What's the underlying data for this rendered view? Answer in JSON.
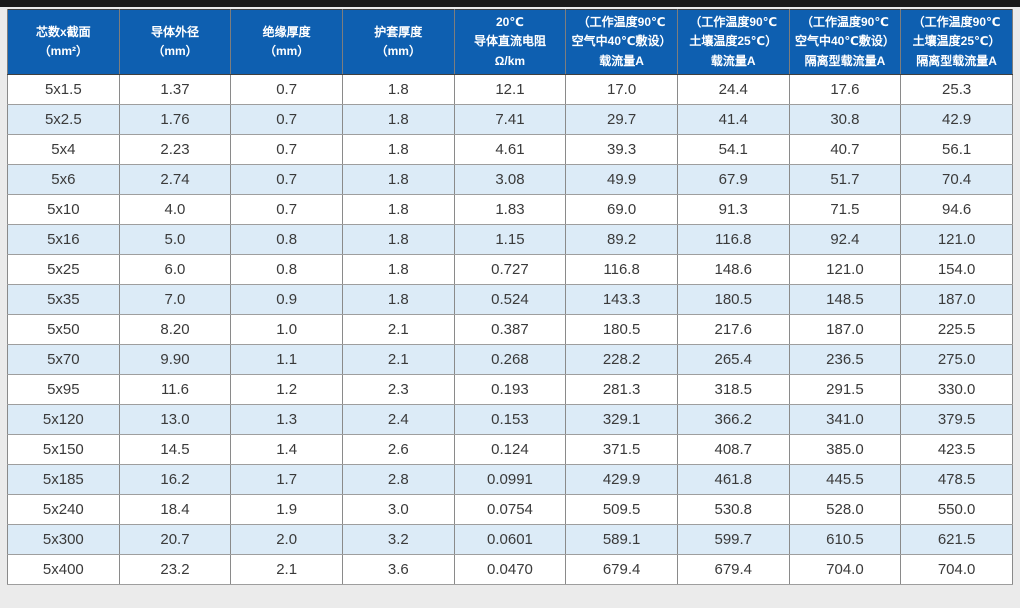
{
  "colors": {
    "header_bg": "#0e5fb0",
    "header_text": "#ffffff",
    "row_bg": "#ffffff",
    "row_alt_bg": "#dcebf7",
    "cell_text": "#3a3a3a",
    "grid_v": "#8a8a8a",
    "grid_h": "#9e9e9e",
    "outer_border": "#3f3f3f",
    "page_bg": "#ebebeb",
    "top_bar": "#1a1a1a"
  },
  "table": {
    "headers": [
      {
        "lines": [
          "芯数x截面",
          "（mm²）"
        ]
      },
      {
        "lines": [
          "导体外径",
          "（mm）"
        ]
      },
      {
        "lines": [
          "绝缘厚度",
          "（mm）"
        ]
      },
      {
        "lines": [
          "护套厚度",
          "（mm）"
        ]
      },
      {
        "lines": [
          "20℃",
          "导体直流电阻",
          "Ω/km"
        ]
      },
      {
        "lines": [
          "（工作温度90℃",
          "空气中40℃敷设）",
          "载流量A"
        ]
      },
      {
        "lines": [
          "（工作温度90℃",
          "土壤温度25℃）",
          "载流量A"
        ]
      },
      {
        "lines": [
          "（工作温度90℃",
          "空气中40℃敷设）",
          "隔离型载流量A"
        ]
      },
      {
        "lines": [
          "（工作温度90℃",
          "土壤温度25℃）",
          "隔离型载流量A"
        ]
      }
    ],
    "rows": [
      [
        "5x1.5",
        "1.37",
        "0.7",
        "1.8",
        "12.1",
        "17.0",
        "24.4",
        "17.6",
        "25.3"
      ],
      [
        "5x2.5",
        "1.76",
        "0.7",
        "1.8",
        "7.41",
        "29.7",
        "41.4",
        "30.8",
        "42.9"
      ],
      [
        "5x4",
        "2.23",
        "0.7",
        "1.8",
        "4.61",
        "39.3",
        "54.1",
        "40.7",
        "56.1"
      ],
      [
        "5x6",
        "2.74",
        "0.7",
        "1.8",
        "3.08",
        "49.9",
        "67.9",
        "51.7",
        "70.4"
      ],
      [
        "5x10",
        "4.0",
        "0.7",
        "1.8",
        "1.83",
        "69.0",
        "91.3",
        "71.5",
        "94.6"
      ],
      [
        "5x16",
        "5.0",
        "0.8",
        "1.8",
        "1.15",
        "89.2",
        "116.8",
        "92.4",
        "121.0"
      ],
      [
        "5x25",
        "6.0",
        "0.8",
        "1.8",
        "0.727",
        "116.8",
        "148.6",
        "121.0",
        "154.0"
      ],
      [
        "5x35",
        "7.0",
        "0.9",
        "1.8",
        "0.524",
        "143.3",
        "180.5",
        "148.5",
        "187.0"
      ],
      [
        "5x50",
        "8.20",
        "1.0",
        "2.1",
        "0.387",
        "180.5",
        "217.6",
        "187.0",
        "225.5"
      ],
      [
        "5x70",
        "9.90",
        "1.1",
        "2.1",
        "0.268",
        "228.2",
        "265.4",
        "236.5",
        "275.0"
      ],
      [
        "5x95",
        "11.6",
        "1.2",
        "2.3",
        "0.193",
        "281.3",
        "318.5",
        "291.5",
        "330.0"
      ],
      [
        "5x120",
        "13.0",
        "1.3",
        "2.4",
        "0.153",
        "329.1",
        "366.2",
        "341.0",
        "379.5"
      ],
      [
        "5x150",
        "14.5",
        "1.4",
        "2.6",
        "0.124",
        "371.5",
        "408.7",
        "385.0",
        "423.5"
      ],
      [
        "5x185",
        "16.2",
        "1.7",
        "2.8",
        "0.0991",
        "429.9",
        "461.8",
        "445.5",
        "478.5"
      ],
      [
        "5x240",
        "18.4",
        "1.9",
        "3.0",
        "0.0754",
        "509.5",
        "530.8",
        "528.0",
        "550.0"
      ],
      [
        "5x300",
        "20.7",
        "2.0",
        "3.2",
        "0.0601",
        "589.1",
        "599.7",
        "610.5",
        "621.5"
      ],
      [
        "5x400",
        "23.2",
        "2.1",
        "3.6",
        "0.0470",
        "679.4",
        "679.4",
        "704.0",
        "704.0"
      ]
    ]
  }
}
